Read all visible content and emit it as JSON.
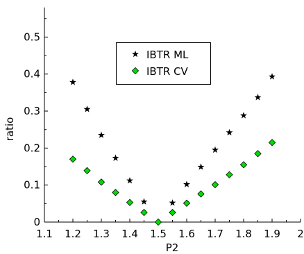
{
  "chart_data": {
    "type": "scatter",
    "xlabel": "P2",
    "ylabel": "ratio",
    "xlim": [
      1.1,
      2.0
    ],
    "ylim": [
      0,
      0.58
    ],
    "xticks": [
      1.1,
      1.2,
      1.3,
      1.4,
      1.5,
      1.6,
      1.7,
      1.8,
      1.9,
      2.0
    ],
    "xtick_labels": [
      "1.1",
      "1.2",
      "1.3",
      "1.4",
      "1.5",
      "1.6",
      "1.7",
      "1.8",
      "1.9",
      "2"
    ],
    "yticks": [
      0,
      0.1,
      0.2,
      0.3,
      0.4,
      0.5
    ],
    "ytick_labels": [
      "0",
      "0.1",
      "0.2",
      "0.3",
      "0.4",
      "0.5"
    ],
    "grid": false,
    "legend_position": "upper-center",
    "series": [
      {
        "name": "IBTR ML",
        "marker": "star",
        "color": "#000000",
        "points": [
          [
            1.2,
            0.378
          ],
          [
            1.25,
            0.305
          ],
          [
            1.3,
            0.235
          ],
          [
            1.35,
            0.173
          ],
          [
            1.4,
            0.112
          ],
          [
            1.45,
            0.055
          ],
          [
            1.55,
            0.052
          ],
          [
            1.6,
            0.102
          ],
          [
            1.65,
            0.149
          ],
          [
            1.7,
            0.195
          ],
          [
            1.75,
            0.242
          ],
          [
            1.8,
            0.288
          ],
          [
            1.85,
            0.337
          ],
          [
            1.9,
            0.393
          ]
        ]
      },
      {
        "name": "IBTR CV",
        "marker": "diamond",
        "color": "#00dd00",
        "points": [
          [
            1.2,
            0.17
          ],
          [
            1.25,
            0.139
          ],
          [
            1.3,
            0.108
          ],
          [
            1.35,
            0.08
          ],
          [
            1.4,
            0.053
          ],
          [
            1.45,
            0.026
          ],
          [
            1.5,
            0.0
          ],
          [
            1.55,
            0.026
          ],
          [
            1.6,
            0.051
          ],
          [
            1.65,
            0.076
          ],
          [
            1.7,
            0.101
          ],
          [
            1.75,
            0.128
          ],
          [
            1.8,
            0.155
          ],
          [
            1.85,
            0.185
          ],
          [
            1.9,
            0.215
          ]
        ]
      }
    ]
  }
}
